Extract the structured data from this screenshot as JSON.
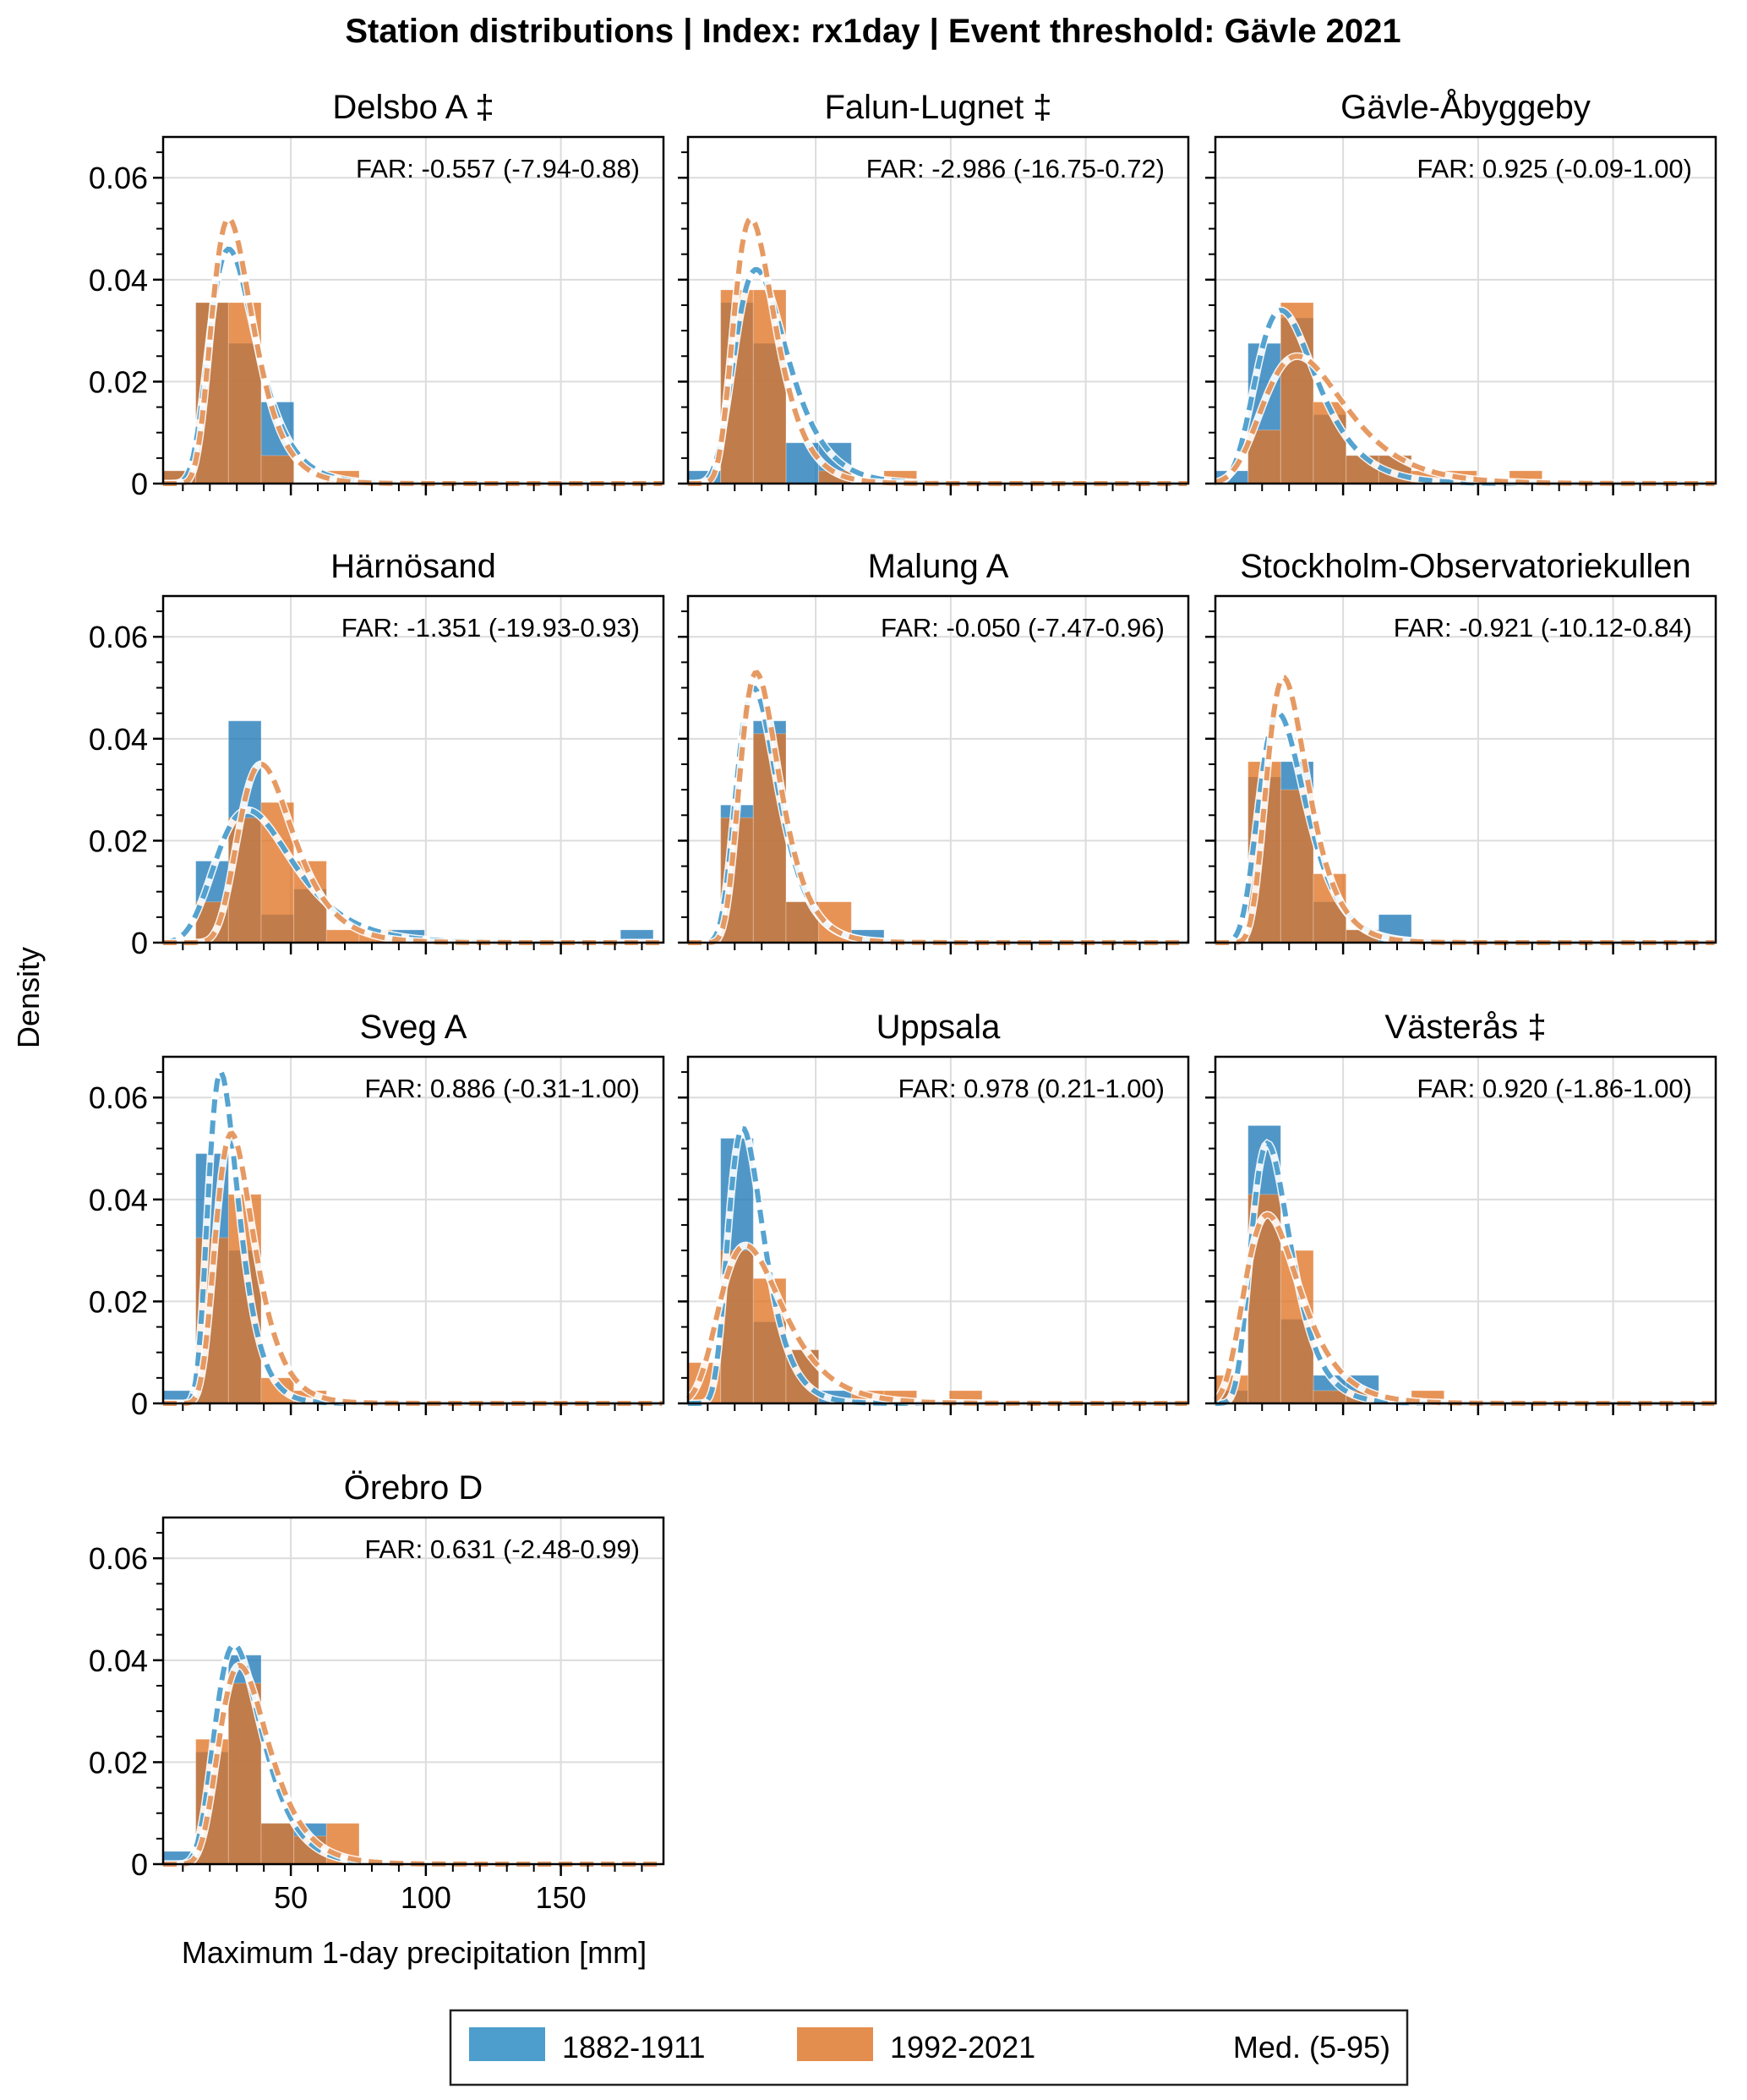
{
  "chart_data": {
    "type": "bar",
    "title": "Station distributions | Index: rx1day | Event threshold: Gävle 2021",
    "xlabel": "Maximum 1-day precipitation [mm]",
    "ylabel": "Density",
    "xlim": [
      2.7,
      188
    ],
    "ylim": [
      0,
      0.068
    ],
    "xticks": [
      50,
      100,
      150
    ],
    "xtick_labels": [
      "50",
      "100",
      "150"
    ],
    "yticks": [
      0,
      0.02,
      0.04,
      0.06
    ],
    "ytick_labels": [
      "0",
      "0.02",
      "0.04",
      "0.06"
    ],
    "grid": true,
    "bin_edges_start": 2.7,
    "bin_width": 12.1,
    "legend": {
      "placement": "bottom-center",
      "entries": [
        {
          "label": "1882-1911",
          "color": "#3a93c8"
        },
        {
          "label": "1992-2021",
          "color": "#e0813c"
        },
        {
          "label": "Med. (5-95)",
          "color": null
        }
      ]
    },
    "colors": {
      "early": "#1f7ab8",
      "late": "#e07426",
      "overlap": "#a6703f"
    },
    "panels": [
      {
        "station": "Delsbo A ‡",
        "far": "FAR: -0.557 (-7.94-0.88)",
        "hist_early": [
          0.0025,
          0.0355,
          0.0275,
          0.016,
          0,
          0,
          0,
          0,
          0,
          0,
          0,
          0,
          0,
          0,
          0
        ],
        "hist_late": [
          0.0025,
          0.0355,
          0.0355,
          0.0055,
          0,
          0.0025,
          0,
          0,
          0,
          0,
          0,
          0,
          0,
          0,
          0
        ],
        "fit_early": {
          "mode": 27,
          "peak": 0.046,
          "scale": 8.5
        },
        "fit_late": {
          "mode": 27,
          "peak": 0.052,
          "scale": 7.5
        }
      },
      {
        "station": "Falun-Lugnet ‡",
        "far": "FAR: -2.986 (-16.75-0.72)",
        "hist_early": [
          0.0025,
          0.0355,
          0.0275,
          0.008,
          0.008,
          0,
          0,
          0,
          0,
          0,
          0,
          0,
          0,
          0,
          0
        ],
        "hist_late": [
          0,
          0.038,
          0.038,
          0,
          0.0025,
          0,
          0.0025,
          0,
          0,
          0,
          0,
          0,
          0,
          0,
          0
        ],
        "fit_early": {
          "mode": 28,
          "peak": 0.042,
          "scale": 9.5
        },
        "fit_late": {
          "mode": 26,
          "peak": 0.052,
          "scale": 7.5
        }
      },
      {
        "station": "Gävle-Åbyggeby",
        "far": "FAR: 0.925 (-0.09-1.00)",
        "hist_early": [
          0.0025,
          0.0275,
          0.0325,
          0.0135,
          0.0055,
          0.0055,
          0,
          0,
          0,
          0,
          0,
          0,
          0,
          0,
          0
        ],
        "hist_late": [
          0,
          0.0105,
          0.0355,
          0.016,
          0.0055,
          0.0055,
          0.0025,
          0.0025,
          0,
          0.0025,
          0,
          0,
          0,
          0,
          0
        ],
        "fit_early": {
          "mode": 27,
          "peak": 0.034,
          "scale": 11
        },
        "fit_late": {
          "mode": 33,
          "peak": 0.025,
          "scale": 15
        }
      },
      {
        "station": "Härnösand",
        "far": "FAR: -1.351 (-19.93-0.93)",
        "hist_early": [
          0,
          0.016,
          0.0435,
          0.0055,
          0.0105,
          0,
          0,
          0.0025,
          0,
          0,
          0,
          0,
          0,
          0,
          0.0025
        ],
        "hist_late": [
          0.0005,
          0.008,
          0.0245,
          0.0275,
          0.016,
          0.0025,
          0.0025,
          0,
          0,
          0,
          0,
          0,
          0,
          0,
          0
        ],
        "fit_early": {
          "mode": 34,
          "peak": 0.026,
          "scale": 14
        },
        "fit_late": {
          "mode": 39,
          "peak": 0.035,
          "scale": 10
        }
      },
      {
        "station": "Malung A",
        "far": "FAR: -0.050 (-7.47-0.96)",
        "hist_early": [
          0,
          0.027,
          0.0435,
          0.008,
          0,
          0.0025,
          0,
          0,
          0,
          0,
          0,
          0,
          0,
          0,
          0
        ],
        "hist_late": [
          0,
          0.0245,
          0.041,
          0.008,
          0.008,
          0,
          0,
          0,
          0,
          0,
          0,
          0,
          0,
          0,
          0
        ],
        "fit_early": {
          "mode": 27,
          "peak": 0.05,
          "scale": 7.5
        },
        "fit_late": {
          "mode": 28,
          "peak": 0.053,
          "scale": 7.2
        }
      },
      {
        "station": "Stockholm-Observatoriekullen",
        "far": "FAR: -0.921 (-10.12-0.84)",
        "hist_early": [
          0,
          0.0325,
          0.0355,
          0.008,
          0.0025,
          0.0055,
          0,
          0,
          0,
          0,
          0,
          0,
          0,
          0,
          0
        ],
        "hist_late": [
          0,
          0.0355,
          0.03,
          0.0135,
          0.0025,
          0,
          0,
          0,
          0,
          0,
          0,
          0,
          0,
          0,
          0
        ],
        "fit_early": {
          "mode": 26,
          "peak": 0.045,
          "scale": 8.5
        },
        "fit_late": {
          "mode": 28,
          "peak": 0.052,
          "scale": 7.5
        }
      },
      {
        "station": "Sveg A",
        "far": "FAR: 0.886 (-0.31-1.00)",
        "hist_early": [
          0.0025,
          0.049,
          0.03,
          0,
          0,
          0,
          0,
          0,
          0,
          0,
          0,
          0,
          0,
          0,
          0
        ],
        "hist_late": [
          0,
          0.0325,
          0.041,
          0.005,
          0.0025,
          0,
          0,
          0,
          0,
          0,
          0,
          0,
          0,
          0,
          0
        ],
        "fit_early": {
          "mode": 24,
          "peak": 0.065,
          "scale": 5.5
        },
        "fit_late": {
          "mode": 28,
          "peak": 0.053,
          "scale": 7
        }
      },
      {
        "station": "Uppsala",
        "far": "FAR: 0.978 (0.21-1.00)",
        "hist_early": [
          0,
          0.052,
          0.016,
          0.0105,
          0.0025,
          0,
          0,
          0,
          0,
          0,
          0,
          0,
          0,
          0,
          0
        ],
        "hist_late": [
          0.008,
          0.03,
          0.0245,
          0.0105,
          0,
          0.0025,
          0.0025,
          0,
          0.0025,
          0,
          0,
          0,
          0,
          0,
          0
        ],
        "fit_early": {
          "mode": 23,
          "peak": 0.054,
          "scale": 6.5
        },
        "fit_late": {
          "mode": 24,
          "peak": 0.031,
          "scale": 11.5
        }
      },
      {
        "station": "Västerås ‡",
        "far": "FAR: 0.920 (-1.86-1.00)",
        "hist_early": [
          0.0025,
          0.0545,
          0.0165,
          0.0055,
          0.0055,
          0,
          0,
          0,
          0,
          0,
          0,
          0,
          0,
          0,
          0
        ],
        "hist_late": [
          0.0055,
          0.041,
          0.03,
          0.0025,
          0.0025,
          0,
          0.0025,
          0,
          0,
          0,
          0,
          0,
          0,
          0,
          0
        ],
        "fit_early": {
          "mode": 22,
          "peak": 0.051,
          "scale": 7.2
        },
        "fit_late": {
          "mode": 22,
          "peak": 0.037,
          "scale": 10
        }
      },
      {
        "station": "Örebro D",
        "far": "FAR: 0.631 (-2.48-0.99)",
        "hist_early": [
          0.0025,
          0.022,
          0.041,
          0.008,
          0.008,
          0,
          0,
          0,
          0,
          0,
          0,
          0,
          0,
          0,
          0
        ],
        "hist_late": [
          0.0005,
          0.0245,
          0.0355,
          0.008,
          0.0055,
          0.008,
          0,
          0,
          0,
          0,
          0,
          0,
          0,
          0,
          0
        ],
        "fit_early": {
          "mode": 29,
          "peak": 0.043,
          "scale": 8.5
        },
        "fit_late": {
          "mode": 31,
          "peak": 0.039,
          "scale": 9
        }
      }
    ]
  }
}
